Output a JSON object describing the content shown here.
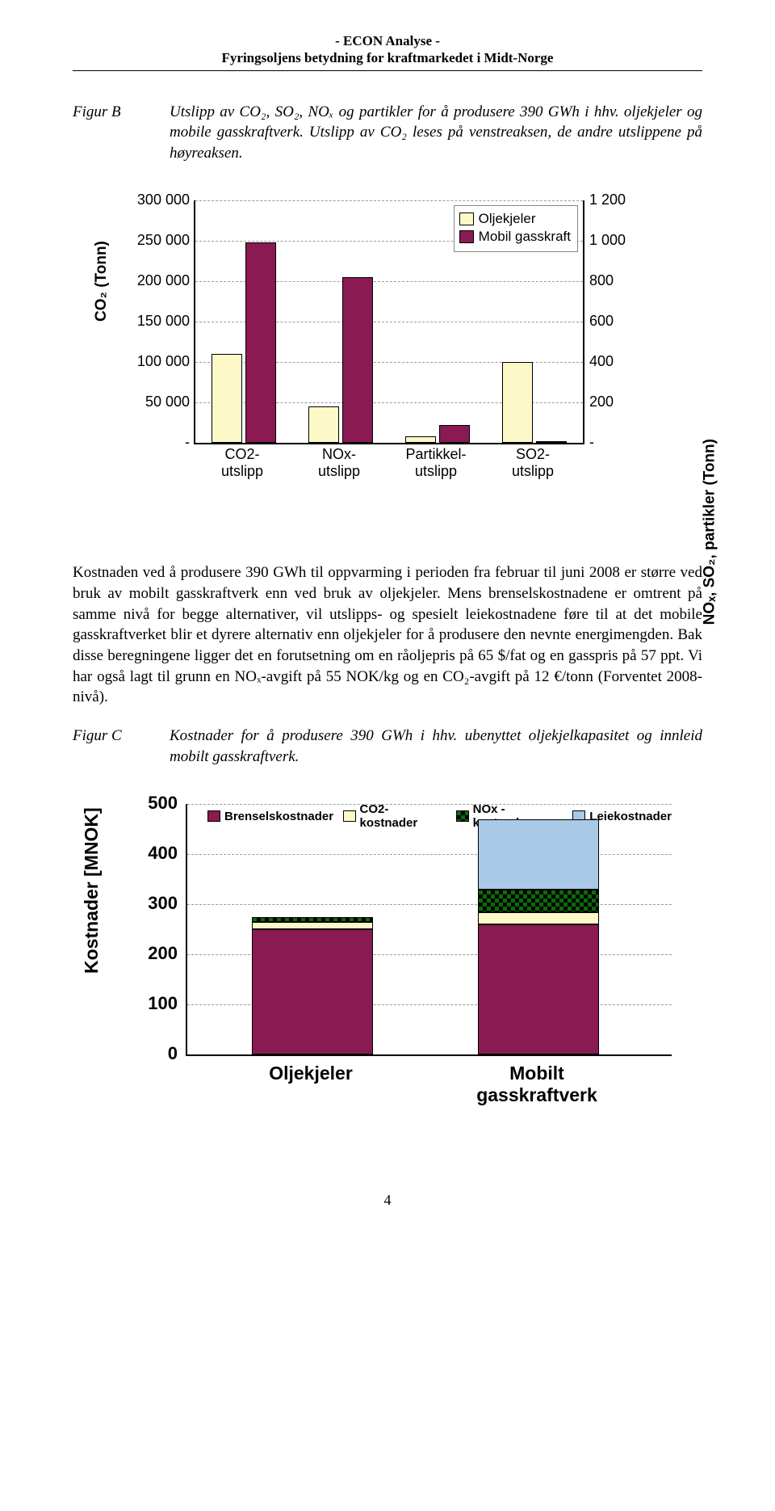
{
  "header": {
    "line1": "- ECON Analyse -",
    "line2": "Fyringsoljens betydning for kraftmarkedet i Midt-Norge"
  },
  "figB": {
    "label": "Figur B",
    "caption": "Utslipp av CO₂, SO₂, NOₓ og partikler for å produsere 390 GWh i hhv. oljekjeler og mobile gasskraftverk. Utslipp av CO₂ leses på venstreaksen, de andre utslippene på høyreaksen.",
    "y_left_label": "CO₂ (Tonn)",
    "y_right_label": "NOₓ, SO₂, partikler (Tonn)",
    "y_left_ticks": [
      "300 000",
      "250 000",
      "200 000",
      "150 000",
      "100 000",
      "50 000",
      "-"
    ],
    "y_left_max": 300000,
    "y_right_ticks": [
      "1 200",
      "1 000",
      "800",
      "600",
      "400",
      "200",
      "-"
    ],
    "y_right_max": 1200,
    "legend": [
      {
        "label": "Oljekjeler",
        "color": "#fdf8c7"
      },
      {
        "label": "Mobil gasskraft",
        "color": "#8a1a52"
      }
    ],
    "x_labels": [
      "CO2-\nutslipp",
      "NOx-\nutslipp",
      "Partikkel-\nutslipp",
      "SO2-\nutslipp"
    ],
    "series": [
      {
        "axis": "left",
        "olje": 110000,
        "gass": 248000
      },
      {
        "axis": "right",
        "olje": 180,
        "gass": 820
      },
      {
        "axis": "right",
        "olje": 35,
        "gass": 90
      },
      {
        "axis": "right",
        "olje": 400,
        "gass": 0
      }
    ],
    "bar_colors": {
      "olje": "#fdf8c7",
      "gass": "#8a1a52"
    },
    "grid_color": "#999999"
  },
  "para1": "Kostnaden ved å produsere 390 GWh til oppvarming i perioden fra februar til juni 2008 er større ved bruk av mobilt gasskraftverk enn ved bruk av oljekjeler. Mens brenselskostnadene er omtrent på samme nivå for begge alternativer, vil utslipps- og spesielt leiekostnadene føre til at det mobile gasskraftverket blir et dyrere alternativ enn oljekjeler for å produsere den nevnte energimengden. Bak disse beregningene ligger det en forutsetning om en råoljepris på 65 $/fat og en gasspris på 57 ppt. Vi har også lagt til grunn en NOₓ-avgift på 55 NOK/kg og en CO₂-avgift på 12 €/tonn (Forventet 2008-nivå).",
  "figC": {
    "label": "Figur C",
    "caption": "Kostnader for å produsere 390 GWh i hhv. ubenyttet oljekjelkapasitet og innleid mobilt gasskraftverk.",
    "y_label": "Kostnader [MNOK]",
    "y_ticks": [
      "500",
      "400",
      "300",
      "200",
      "100",
      "0"
    ],
    "y_max": 500,
    "legend": [
      {
        "label": "Brenselskostnader",
        "color": "#8a1a52"
      },
      {
        "label": "CO2- kostnader",
        "color": "#fdf8c7"
      },
      {
        "label": "NOx - kostnader",
        "pattern": "checker"
      },
      {
        "label": "Leiekostnader",
        "color": "#a9c9e6"
      }
    ],
    "x_labels": [
      "Oljekjeler",
      "Mobilt\ngasskraftverk"
    ],
    "stacks": [
      {
        "brensel": 250,
        "co2": 15,
        "nox": 10,
        "leie": 0
      },
      {
        "brensel": 260,
        "co2": 25,
        "nox": 45,
        "leie": 140
      }
    ],
    "colors": {
      "brensel": "#8a1a52",
      "co2": "#fdf8c7",
      "nox_bg": "#0a6b0a",
      "leie": "#a9c9e6"
    }
  },
  "page_num": "4"
}
